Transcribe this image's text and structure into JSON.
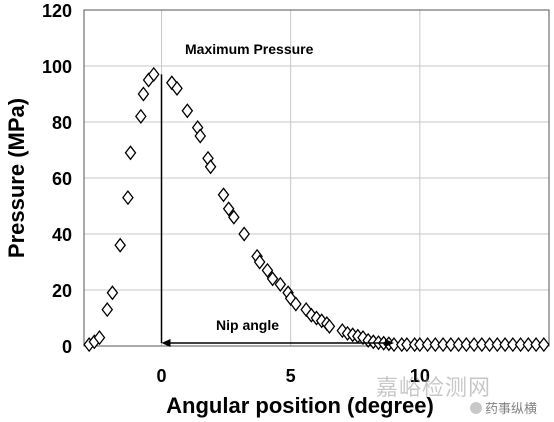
{
  "chart_data": {
    "type": "scatter",
    "xlabel": "Angular position (degree)",
    "ylabel": "Pressure (MPa)",
    "xlim": [
      -3,
      15
    ],
    "ylim": [
      0,
      120
    ],
    "xticks": [
      0,
      5,
      10
    ],
    "yticks": [
      0,
      20,
      40,
      60,
      80,
      100,
      120
    ],
    "grid": true,
    "marker": "diamond-open",
    "annotations": {
      "max_label": "Maximum Pressure",
      "nip_label": "Nip angle",
      "max_line_x": 0,
      "nip_range": [
        0,
        9
      ]
    },
    "series": [
      {
        "x": [
          -2.8,
          -2.6,
          -2.4,
          -2.1,
          -1.9,
          -1.6,
          -1.3,
          -1.2,
          -0.8,
          -0.7,
          -0.5,
          -0.3,
          0.4,
          0.6,
          1.0,
          1.4,
          1.5,
          1.8,
          1.9,
          2.4,
          2.6,
          2.8,
          3.2,
          3.7,
          3.8,
          4.1,
          4.3,
          4.6,
          4.9,
          5.0,
          5.2,
          5.6,
          5.8,
          6.0,
          6.2,
          6.4,
          6.5,
          7.0,
          7.2,
          7.4,
          7.6,
          7.8,
          8.0,
          8.2,
          8.4,
          8.6,
          8.8,
          9.0,
          9.3,
          9.5,
          9.8,
          10.0,
          10.3,
          10.6,
          10.9,
          11.2,
          11.5,
          11.8,
          12.1,
          12.4,
          12.7,
          13.0,
          13.3,
          13.6,
          13.9,
          14.2,
          14.5,
          14.8
        ],
        "y": [
          0.5,
          1.5,
          3,
          13,
          19,
          36,
          53,
          69,
          82,
          90,
          95,
          97,
          94,
          92,
          84,
          78,
          75,
          67,
          64,
          54,
          49,
          46,
          40,
          32,
          30,
          27,
          24,
          22,
          19,
          17,
          15,
          13,
          11,
          10,
          9,
          8,
          7,
          5.5,
          4.5,
          4,
          3.5,
          3,
          2,
          1.5,
          1.2,
          1,
          0.8,
          0.5,
          0.5,
          0.5,
          0.5,
          0.5,
          0.5,
          0.5,
          0.5,
          0.5,
          0.5,
          0.5,
          0.5,
          0.5,
          0.5,
          0.5,
          0.5,
          0.5,
          0.5,
          0.5,
          0.5,
          0.5
        ]
      }
    ]
  },
  "watermark": {
    "main": "嘉峪检测网",
    "sub": "药事纵横"
  }
}
